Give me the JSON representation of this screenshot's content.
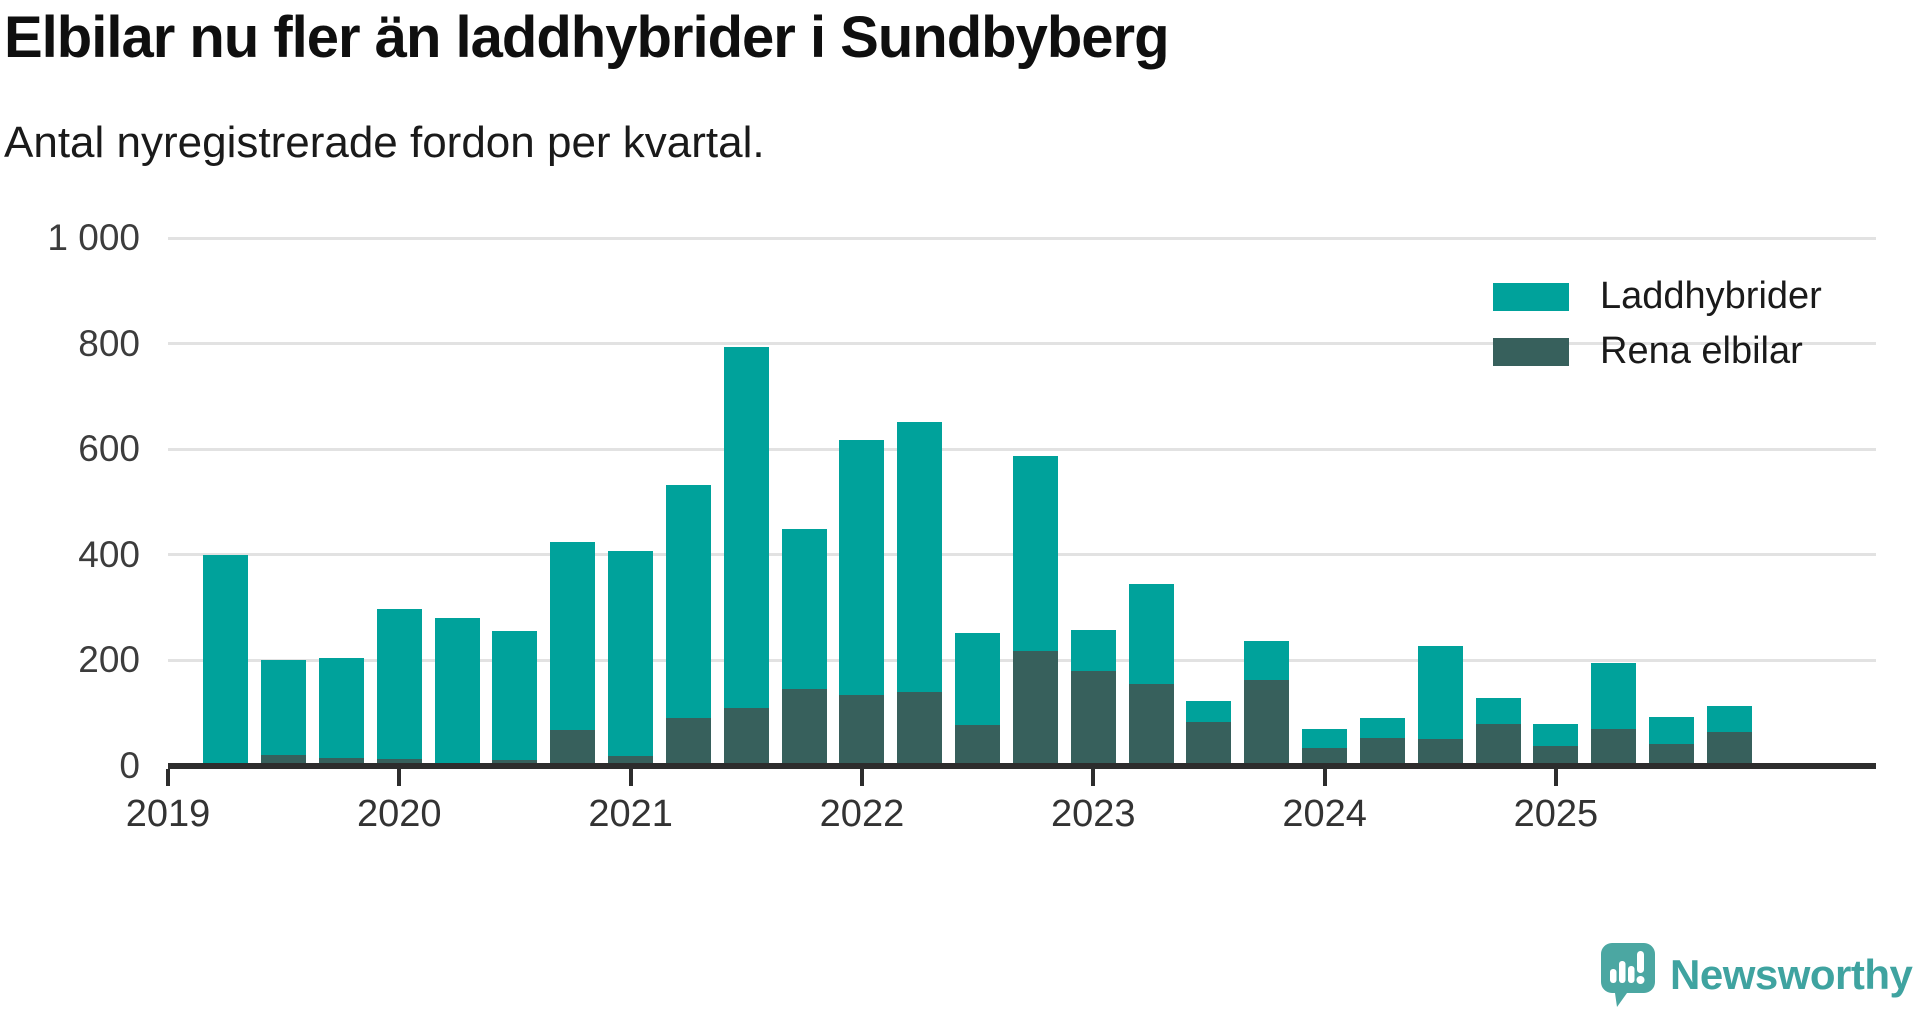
{
  "title": "Elbilar nu fler än laddhybrider i Sundbyberg",
  "subtitle": "Antal nyregistrerade fordon per kvartal.",
  "branding": {
    "name": "Newsworthy",
    "bubble_color": "#4BA7A2",
    "bubble_tail_color": "#3E949B",
    "text_color": "#3FA3A0",
    "glyph_color": "#ffffff"
  },
  "colors": {
    "laddhybrider": "#00A29B",
    "rena_elbilar": "#37605C",
    "gridline": "#E2E2E2",
    "axis": "#2d2d2d",
    "tick_label": "#3c3c3c",
    "title_text": "#0f0f0f",
    "subtitle_text": "#1a1a1a",
    "background": "#ffffff"
  },
  "legend": {
    "items": [
      {
        "label": "Laddhybrider",
        "color": "#00A29B"
      },
      {
        "label": "Rena elbilar",
        "color": "#37605C"
      }
    ],
    "position": "top-right"
  },
  "chart_data": {
    "type": "bar",
    "stacked": true,
    "title": "Elbilar nu fler än laddhybrider i Sundbyberg",
    "subtitle": "Antal nyregistrerade fordon per kvartal.",
    "xlabel": "",
    "ylabel": "",
    "ylim": [
      0,
      1000
    ],
    "grid": true,
    "legend_position": "top-right",
    "x": [
      "2019 Q2",
      "2019 Q3",
      "2019 Q4",
      "2020 Q1",
      "2020 Q2",
      "2020 Q3",
      "2020 Q4",
      "2021 Q1",
      "2021 Q2",
      "2021 Q3",
      "2021 Q4",
      "2022 Q1",
      "2022 Q2",
      "2022 Q3",
      "2022 Q4",
      "2023 Q1",
      "2023 Q2",
      "2023 Q3",
      "2023 Q4",
      "2024 Q1",
      "2024 Q2",
      "2024 Q3",
      "2024 Q4",
      "2025 Q1",
      "2025 Q2",
      "2025 Q3",
      "2025 Q4"
    ],
    "series": [
      {
        "name": "Laddhybrider",
        "color": "#00A29B",
        "values": [
          400,
          180,
          190,
          285,
          280,
          245,
          357,
          390,
          443,
          683,
          304,
          483,
          512,
          174,
          370,
          78,
          190,
          39,
          74,
          36,
          37,
          177,
          49,
          41,
          125,
          50,
          50
        ]
      },
      {
        "name": "Rena elbilar",
        "color": "#37605C",
        "values": [
          0,
          20,
          15,
          13,
          0,
          11,
          68,
          18,
          90,
          110,
          145,
          135,
          140,
          78,
          218,
          180,
          155,
          84,
          162,
          34,
          53,
          51,
          79,
          38,
          71,
          42,
          64
        ]
      }
    ],
    "yticks": [
      {
        "value": 0,
        "label": "0"
      },
      {
        "value": 200,
        "label": "200"
      },
      {
        "value": 400,
        "label": "400"
      },
      {
        "value": 600,
        "label": "600"
      },
      {
        "value": 800,
        "label": "800"
      },
      {
        "value": 1000,
        "label": "1 000"
      }
    ],
    "xticks": [
      {
        "label": "2019",
        "quarter_index": 0
      },
      {
        "label": "2020",
        "quarter_index": 4
      },
      {
        "label": "2021",
        "quarter_index": 8
      },
      {
        "label": "2022",
        "quarter_index": 12
      },
      {
        "label": "2023",
        "quarter_index": 16
      },
      {
        "label": "2024",
        "quarter_index": 20
      },
      {
        "label": "2025",
        "quarter_index": 24
      }
    ],
    "first_bar_quarter_offset": 1
  }
}
